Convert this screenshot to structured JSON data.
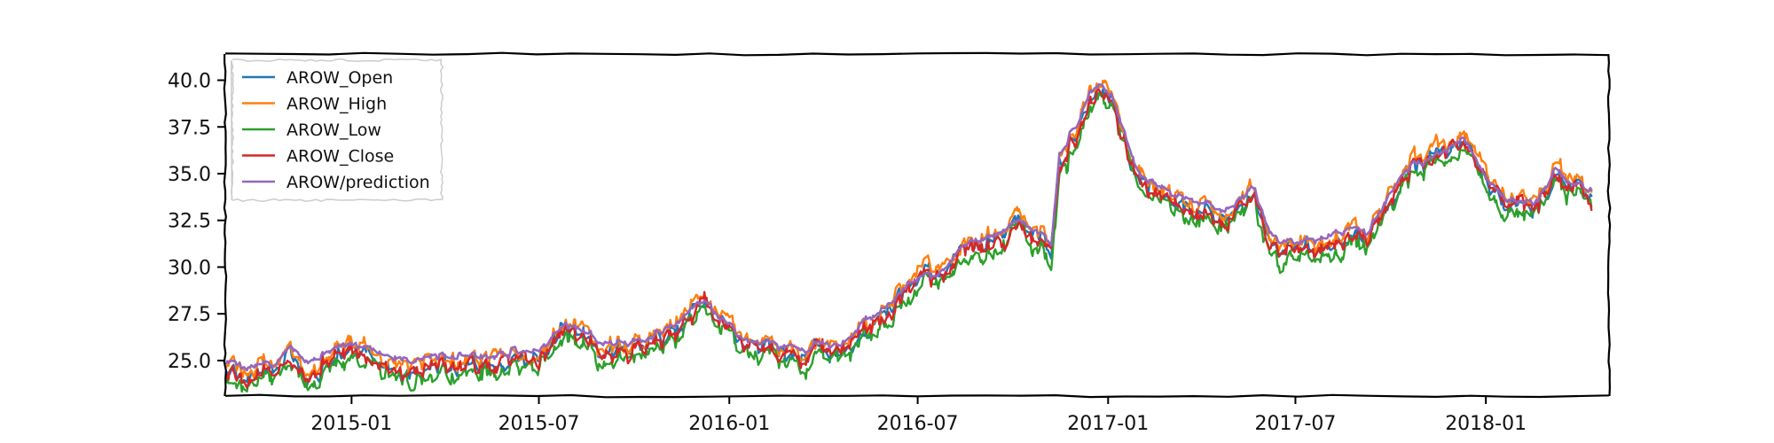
{
  "chart_data": {
    "type": "line",
    "title": "",
    "xlabel": "",
    "ylabel": "",
    "x_range": [
      "2014-09-01",
      "2018-04-30"
    ],
    "ylim": [
      23.1,
      41.4
    ],
    "x_ticks": [
      "2015-01",
      "2015-07",
      "2016-01",
      "2016-07",
      "2017-01",
      "2017-07",
      "2018-01"
    ],
    "y_ticks": [
      "25.0",
      "27.5",
      "30.0",
      "32.5",
      "35.0",
      "37.5",
      "40.0"
    ],
    "grid": false,
    "legend_position": "top-left",
    "style": "xkcd-sketch",
    "data_start": "2014-09-02",
    "data_end": "2018-04-13",
    "anchors": [
      [
        "2014-09-02",
        24.6
      ],
      [
        "2014-10-01",
        24.4
      ],
      [
        "2014-10-20",
        24.4
      ],
      [
        "2014-11-05",
        25.6
      ],
      [
        "2014-11-20",
        25.0
      ],
      [
        "2014-12-15",
        25.6
      ],
      [
        "2015-01-01",
        25.5
      ],
      [
        "2015-03-01",
        25.0
      ],
      [
        "2015-04-15",
        25.2
      ],
      [
        "2015-05-15",
        24.9
      ],
      [
        "2015-06-20",
        25.3
      ],
      [
        "2015-07-10",
        25.6
      ],
      [
        "2015-07-25",
        26.4
      ],
      [
        "2015-09-01",
        25.9
      ],
      [
        "2015-10-15",
        25.8
      ],
      [
        "2015-11-10",
        26.6
      ],
      [
        "2015-12-01",
        27.4
      ],
      [
        "2015-12-10",
        27.2
      ],
      [
        "2016-01-05",
        26.0
      ],
      [
        "2016-01-22",
        25.6
      ],
      [
        "2016-02-15",
        25.5
      ],
      [
        "2016-04-01",
        25.4
      ],
      [
        "2016-04-20",
        25.5
      ],
      [
        "2016-05-10",
        27.0
      ],
      [
        "2016-06-01",
        27.6
      ],
      [
        "2016-06-20",
        28.4
      ],
      [
        "2016-07-05",
        28.8
      ],
      [
        "2016-07-20",
        28.5
      ],
      [
        "2016-08-10",
        30.5
      ],
      [
        "2016-09-01",
        31.0
      ],
      [
        "2016-10-01",
        31.7
      ],
      [
        "2016-10-20",
        31.8
      ],
      [
        "2016-11-07",
        31.0
      ],
      [
        "2016-11-15",
        36.0
      ],
      [
        "2016-11-30",
        37.5
      ],
      [
        "2016-12-15",
        38.9
      ],
      [
        "2016-12-25",
        39.5
      ],
      [
        "2017-01-10",
        38.0
      ],
      [
        "2017-02-01",
        34.5
      ],
      [
        "2017-03-01",
        33.8
      ],
      [
        "2017-04-01",
        33.2
      ],
      [
        "2017-05-01",
        33.0
      ],
      [
        "2017-05-20",
        34.0
      ],
      [
        "2017-06-10",
        31.5
      ],
      [
        "2017-07-01",
        31.0
      ],
      [
        "2017-08-01",
        31.6
      ],
      [
        "2017-08-20",
        31.8
      ],
      [
        "2017-09-10",
        31.5
      ],
      [
        "2017-10-01",
        33.8
      ],
      [
        "2017-10-20",
        34.8
      ],
      [
        "2017-11-20",
        35.2
      ],
      [
        "2017-12-10",
        36.5
      ],
      [
        "2018-01-01",
        34.0
      ],
      [
        "2018-02-01",
        32.8
      ],
      [
        "2018-02-20",
        33.2
      ],
      [
        "2018-03-10",
        34.8
      ],
      [
        "2018-03-25",
        33.8
      ],
      [
        "2018-04-13",
        33.9
      ]
    ],
    "series": [
      {
        "name": "AROW_Open",
        "color": "#1f77b4",
        "offset": 0.0,
        "noise_amp": 0.55,
        "noise_seed": 11
      },
      {
        "name": "AROW_High",
        "color": "#ff7f0e",
        "offset": 0.35,
        "noise_amp": 0.55,
        "noise_seed": 23
      },
      {
        "name": "AROW_Low",
        "color": "#2ca02c",
        "offset": -0.45,
        "noise_amp": 0.6,
        "noise_seed": 37
      },
      {
        "name": "AROW_Close",
        "color": "#d62728",
        "offset": -0.05,
        "noise_amp": 0.6,
        "noise_seed": 53
      },
      {
        "name": "AROW/prediction",
        "color": "#9467bd",
        "offset": 0.35,
        "noise_amp": 0.12,
        "noise_seed": 71
      }
    ]
  }
}
